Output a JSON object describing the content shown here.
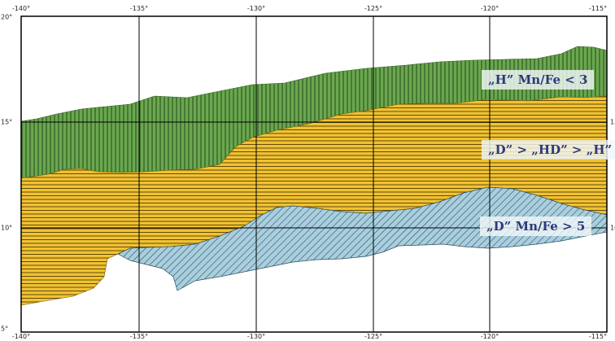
{
  "map": {
    "lon_ticks": [
      "-140°",
      "-135°",
      "-130°",
      "-125°",
      "-120°",
      "-115°"
    ],
    "lat_ticks": [
      "20°",
      "15°",
      "10°",
      "5°"
    ],
    "zones": [
      {
        "id": "hydrogenetic",
        "label": "„H” Mn/Fe < 3",
        "color": "#6aa84f",
        "pattern": "vertical-lines"
      },
      {
        "id": "mixed",
        "label": "„D” > „HD” > „H”",
        "color": "#f1c232",
        "pattern": "horizontal-lines"
      },
      {
        "id": "diagenetic",
        "label": "„D” Mn/Fe > 5",
        "color": "#9fc5d8",
        "pattern": "diagonal-lines"
      }
    ]
  }
}
